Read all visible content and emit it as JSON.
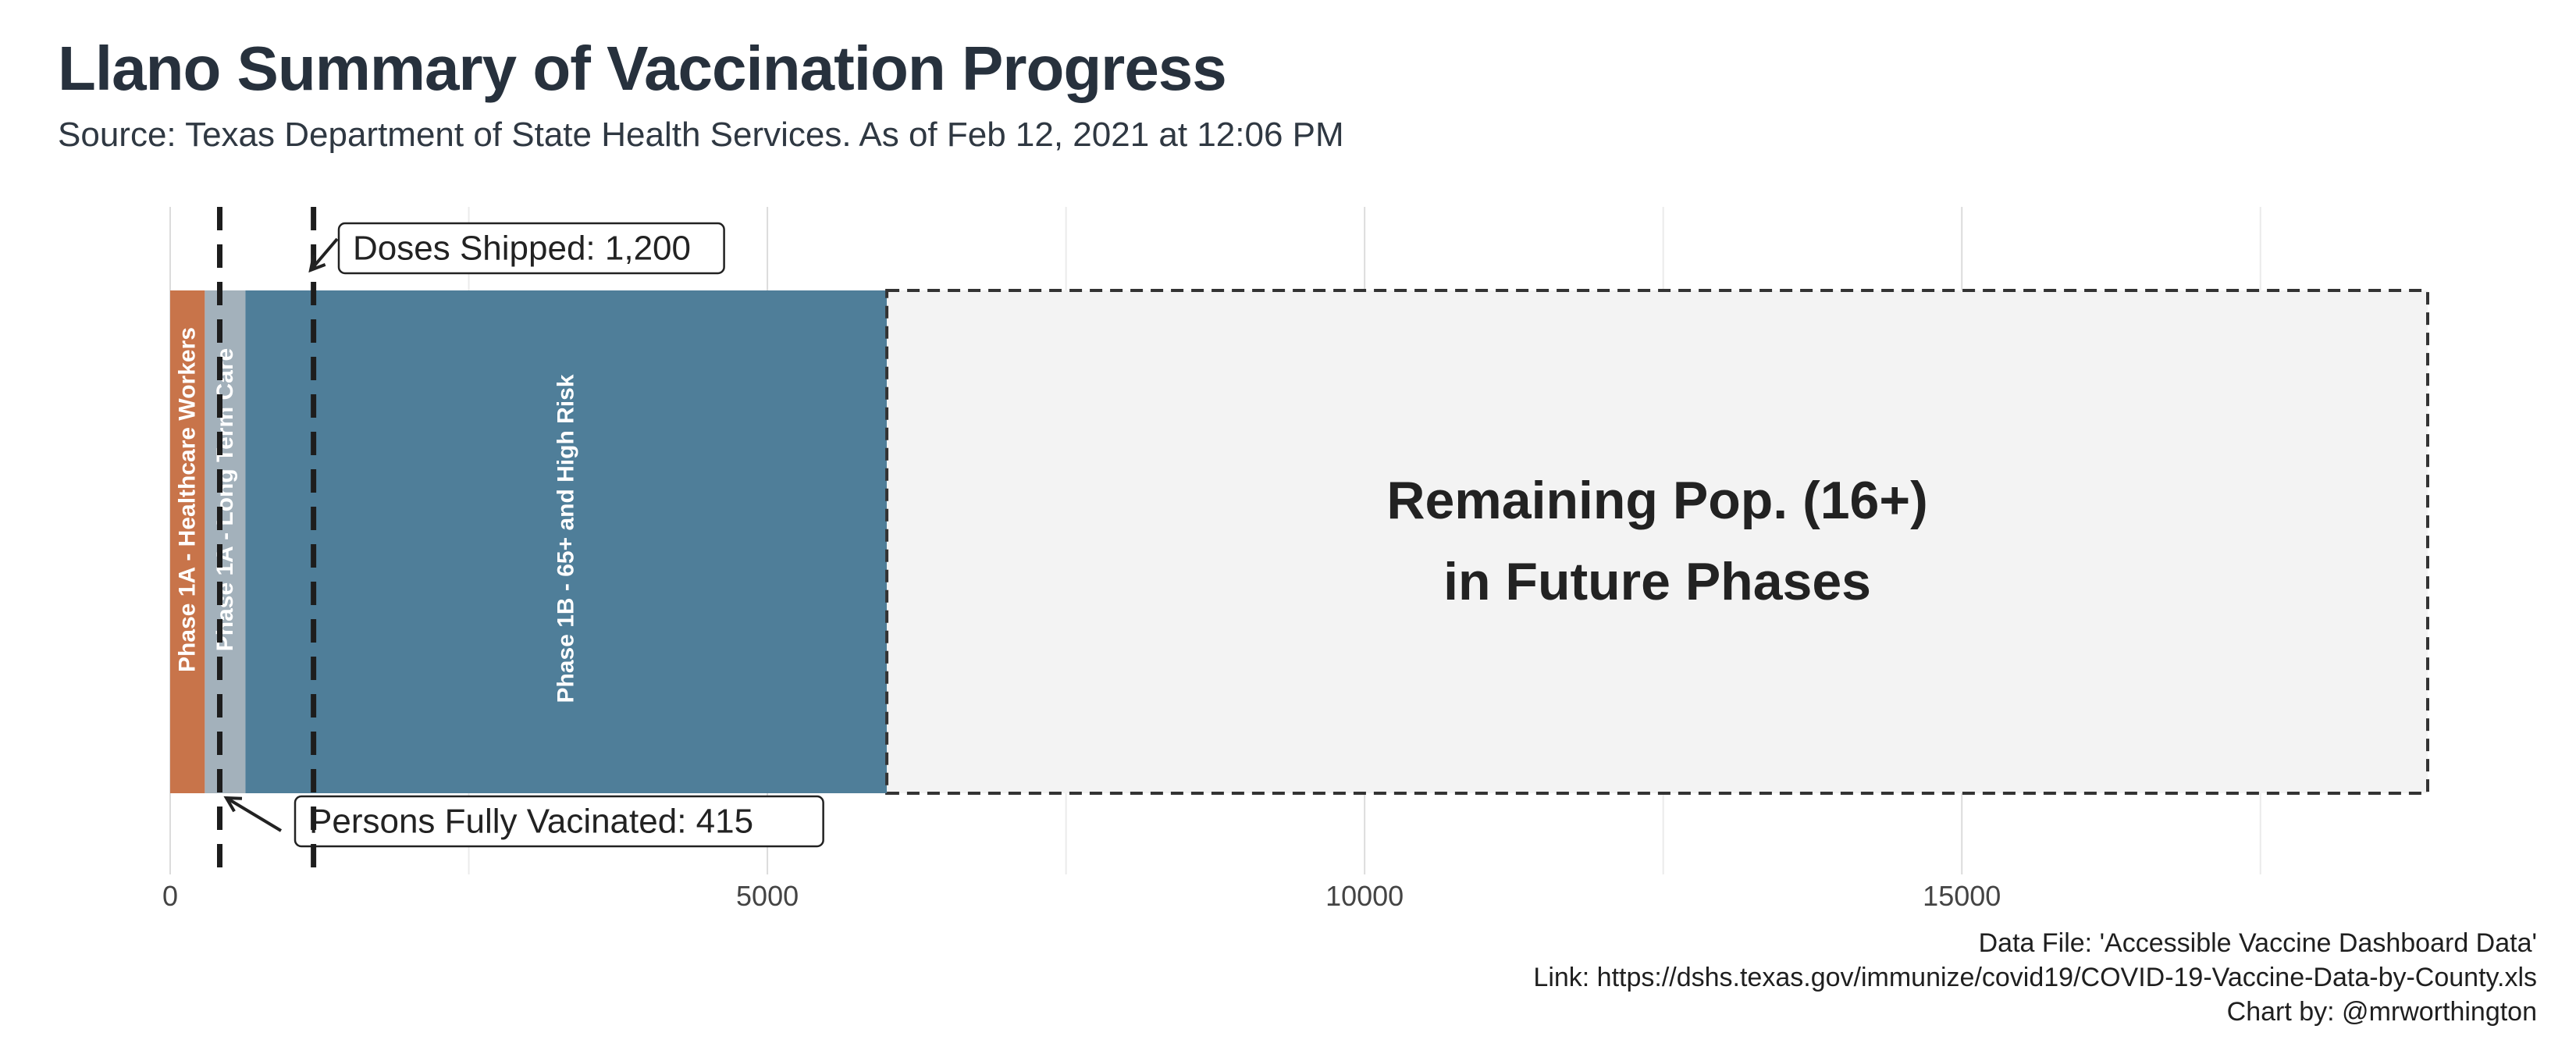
{
  "header": {
    "title": "Llano Summary of Vaccination Progress",
    "subtitle": "Source: Texas Department of State Health Services. As of Feb 12, 2021 at 12:06 PM"
  },
  "chart_data": {
    "type": "bar",
    "orientation": "horizontal-stacked",
    "xlim": [
      0,
      18900
    ],
    "x_ticks": [
      0,
      5000,
      10000,
      15000
    ],
    "grid": true,
    "segments": [
      {
        "name": "Phase 1A - Healthcare Workers",
        "start": 0,
        "value": 290,
        "color": "#c8744a",
        "label_color": "#ffffff"
      },
      {
        "name": "Phase 1A - Long Term Care",
        "start": 290,
        "value": 340,
        "color": "#a3b1bb",
        "label_color": "#ffffff"
      },
      {
        "name": "Phase 1B - 65+ and High Risk",
        "start": 630,
        "value": 5370,
        "color": "#4f7e99",
        "label_color": "#ffffff"
      },
      {
        "name_lines": [
          "Remaining Pop. (16+)",
          "in Future Phases"
        ],
        "start": 6000,
        "value": 12900,
        "color": "#f3f3f3",
        "label_color": "#222222",
        "dashed_border": true
      }
    ],
    "reference_lines": [
      {
        "label": "Persons Fully Vacinated: 415",
        "value": 415
      },
      {
        "label": "Doses Shipped: 1,200",
        "value": 1200
      }
    ]
  },
  "credits": {
    "line1": "Data File: 'Accessible Vaccine Dashboard Data'",
    "line2": "Link: https://dshs.texas.gov/immunize/covid19/COVID-19-Vaccine-Data-by-County.xls",
    "line3": "Chart by: @mrworthington"
  }
}
